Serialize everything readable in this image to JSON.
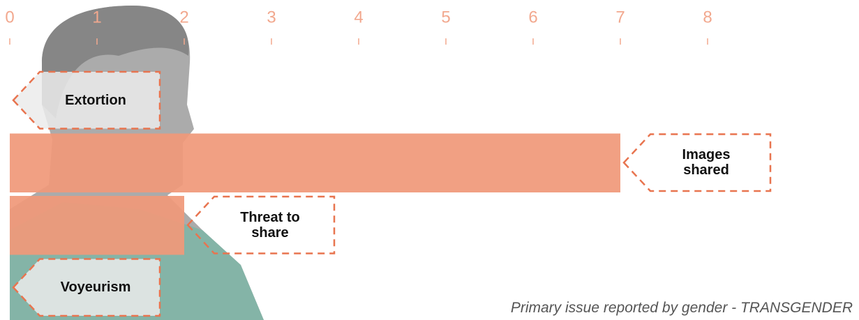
{
  "chart_data": {
    "type": "bar",
    "orientation": "horizontal",
    "title": "Primary issue reported by gender - TRANSGENDER",
    "categories": [
      "Extortion",
      "Images shared",
      "Threat to share",
      "Voyeurism"
    ],
    "values": [
      0,
      7,
      2,
      0
    ],
    "color": "#f0997a",
    "xlim": [
      0,
      8
    ],
    "xticks": [
      0,
      1,
      2,
      3,
      4,
      5,
      6,
      7,
      8
    ]
  }
}
